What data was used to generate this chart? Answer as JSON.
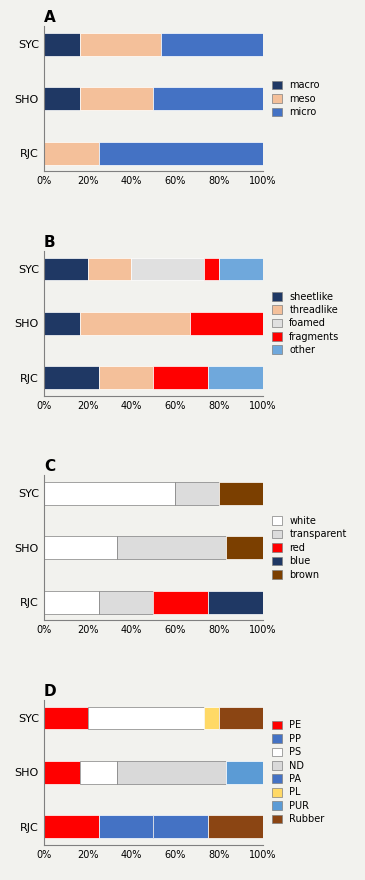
{
  "panel_A": {
    "title": "A",
    "categories": [
      "RJC",
      "SHO",
      "SYC"
    ],
    "legend_labels": [
      "macro",
      "meso",
      "micro"
    ],
    "series": {
      "macro": [
        0.0,
        16.67,
        16.67
      ],
      "meso": [
        25.0,
        33.33,
        36.67
      ],
      "micro": [
        75.0,
        50.0,
        46.67
      ]
    },
    "colors": {
      "macro": "#1F3864",
      "meso": "#F4C09A",
      "micro": "#4472C4"
    }
  },
  "panel_B": {
    "title": "B",
    "categories": [
      "RJC",
      "SHO",
      "SYC"
    ],
    "legend_labels": [
      "sheetlike",
      "threadlike",
      "foamed",
      "fragments",
      "other"
    ],
    "series": {
      "sheetlike": [
        25.0,
        16.67,
        20.0
      ],
      "threadlike": [
        25.0,
        50.0,
        20.0
      ],
      "foamed": [
        0.0,
        0.0,
        33.33
      ],
      "fragments": [
        25.0,
        33.33,
        6.67
      ],
      "other": [
        25.0,
        0.0,
        20.0
      ]
    },
    "colors": {
      "sheetlike": "#1F3864",
      "threadlike": "#F4C09A",
      "foamed": "#E0E0E0",
      "fragments": "#FF0000",
      "other": "#6FA8DC"
    }
  },
  "panel_C": {
    "title": "C",
    "categories": [
      "RJC",
      "SHO",
      "SYC"
    ],
    "legend_labels": [
      "white",
      "transparent",
      "red",
      "blue",
      "brown"
    ],
    "series": {
      "white": [
        25.0,
        33.33,
        60.0
      ],
      "transparent": [
        25.0,
        50.0,
        20.0
      ],
      "red": [
        25.0,
        0.0,
        0.0
      ],
      "blue": [
        25.0,
        0.0,
        0.0
      ],
      "brown": [
        0.0,
        16.67,
        20.0
      ]
    },
    "colors": {
      "white": "#FFFFFF",
      "transparent": "#DCDCDC",
      "red": "#FF0000",
      "blue": "#1F3864",
      "brown": "#7B3F00"
    },
    "edge_colors": {
      "white": "gray",
      "transparent": "gray",
      "red": "white",
      "blue": "white",
      "brown": "white"
    }
  },
  "panel_D": {
    "title": "D",
    "categories": [
      "RJC",
      "SHO",
      "SYC"
    ],
    "legend_labels": [
      "PE",
      "PP",
      "PS",
      "ND",
      "PA",
      "PL",
      "PUR",
      "Rubber"
    ],
    "series": {
      "PE": [
        25.0,
        16.67,
        20.0
      ],
      "PP": [
        25.0,
        0.0,
        0.0
      ],
      "PS": [
        0.0,
        16.67,
        53.33
      ],
      "ND": [
        0.0,
        50.0,
        0.0
      ],
      "PA": [
        25.0,
        0.0,
        0.0
      ],
      "PL": [
        0.0,
        0.0,
        6.67
      ],
      "PUR": [
        0.0,
        16.67,
        0.0
      ],
      "Rubber": [
        25.0,
        0.0,
        20.0
      ]
    },
    "colors": {
      "PE": "#FF0000",
      "PP": "#4472C4",
      "PS": "#FFFFFF",
      "ND": "#D9D9D9",
      "PA": "#4472C4",
      "PL": "#FFD966",
      "PUR": "#5B9BD5",
      "Rubber": "#8B4513"
    },
    "edge_colors": {
      "PE": "white",
      "PP": "white",
      "PS": "gray",
      "ND": "gray",
      "PA": "white",
      "PL": "white",
      "PUR": "white",
      "Rubber": "white"
    }
  },
  "bg_color": "#F2F2EE",
  "bar_height": 0.42,
  "xticks": [
    0,
    20,
    40,
    60,
    80,
    100
  ],
  "xticklabels": [
    "0%",
    "20%",
    "40%",
    "60%",
    "80%",
    "100%"
  ]
}
